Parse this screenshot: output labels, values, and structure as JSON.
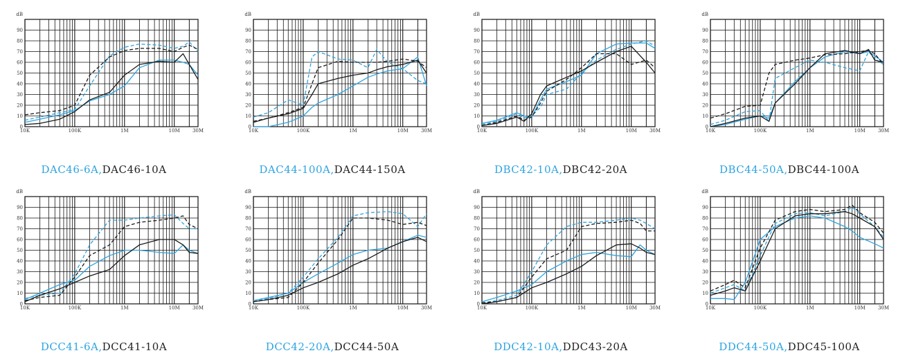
{
  "colors": {
    "blue": "#2ea4e0",
    "black": "#1a1a1a",
    "grid": "#111111"
  },
  "axis": {
    "y_unit": "dB",
    "y_ticks": [
      "0",
      "10",
      "20",
      "30",
      "40",
      "50",
      "60",
      "70",
      "80",
      "90"
    ],
    "x_ticks": [
      "10K",
      "100K",
      "1M",
      "10M",
      "30M"
    ],
    "x_scale": "log",
    "xlim_hz": [
      10000,
      30000000
    ],
    "ylim_db": [
      0,
      100
    ]
  },
  "chart_data": [
    {
      "type": "line",
      "caption_a": "DAC46-6A,",
      "caption_b": "DAC46-10A",
      "x": [
        "10K",
        "20K",
        "50K",
        "100K",
        "200K",
        "500K",
        "1M",
        "2M",
        "5M",
        "10M",
        "15M",
        "20M",
        "30M"
      ],
      "series": [
        {
          "name": "DAC46-6A",
          "color": "blue",
          "dash": "dashed",
          "values": [
            6,
            9,
            13,
            16,
            38,
            66,
            74,
            77,
            76,
            73,
            75,
            79,
            70
          ]
        },
        {
          "name": "DAC46-6A",
          "color": "blue",
          "dash": "solid",
          "values": [
            4,
            7,
            11,
            15,
            24,
            30,
            38,
            55,
            62,
            62,
            60,
            58,
            48
          ]
        },
        {
          "name": "DAC46-10A",
          "color": "black",
          "dash": "dashed",
          "values": [
            11,
            13,
            15,
            20,
            48,
            65,
            71,
            73,
            73,
            70,
            74,
            76,
            72
          ]
        },
        {
          "name": "DAC46-10A",
          "color": "black",
          "dash": "solid",
          "values": [
            2,
            3,
            7,
            14,
            25,
            32,
            48,
            58,
            61,
            60,
            68,
            58,
            44
          ]
        }
      ]
    },
    {
      "type": "line",
      "caption_a": "DAC44-100A,",
      "caption_b": "DAC44-150A",
      "x": [
        "10K",
        "20K",
        "50K",
        "100K",
        "150K",
        "200K",
        "500K",
        "1M",
        "2M",
        "3M",
        "5M",
        "10M",
        "20M",
        "30M"
      ],
      "series": [
        {
          "name": "DAC44-100A",
          "color": "blue",
          "dash": "dashed",
          "values": [
            9,
            13,
            25,
            20,
            65,
            70,
            63,
            62,
            55,
            72,
            60,
            54,
            43,
            40
          ]
        },
        {
          "name": "DAC44-100A",
          "color": "blue",
          "dash": "solid",
          "values": [
            0,
            0,
            4,
            10,
            18,
            22,
            30,
            38,
            46,
            49,
            52,
            54,
            65,
            38
          ]
        },
        {
          "name": "DAC44-150A",
          "color": "black",
          "dash": "dashed",
          "values": [
            5,
            8,
            13,
            18,
            40,
            55,
            61,
            60,
            60,
            60,
            61,
            63,
            61,
            55
          ]
        },
        {
          "name": "DAC44-150A",
          "color": "black",
          "dash": "solid",
          "values": [
            4,
            8,
            12,
            17,
            30,
            40,
            45,
            48,
            50,
            53,
            56,
            58,
            62,
            50
          ]
        }
      ]
    },
    {
      "type": "line",
      "caption_a": "DBC42-10A,",
      "caption_b": "DBC42-20A",
      "x": [
        "10K",
        "20K",
        "50K",
        "70K",
        "100K",
        "150K",
        "200K",
        "500K",
        "1M",
        "2M",
        "5M",
        "10M",
        "20M",
        "30M"
      ],
      "series": [
        {
          "name": "DBC42-10A",
          "color": "blue",
          "dash": "dashed",
          "values": [
            2,
            5,
            12,
            8,
            10,
            18,
            30,
            35,
            50,
            62,
            72,
            77,
            80,
            75
          ]
        },
        {
          "name": "DBC42-10A",
          "color": "blue",
          "dash": "solid",
          "values": [
            3,
            6,
            13,
            10,
            9,
            25,
            35,
            42,
            48,
            68,
            77,
            78,
            78,
            73
          ]
        },
        {
          "name": "DBC42-20A",
          "color": "black",
          "dash": "dashed",
          "values": [
            1,
            4,
            10,
            6,
            9,
            22,
            33,
            44,
            55,
            68,
            68,
            58,
            62,
            55
          ]
        },
        {
          "name": "DBC42-20A",
          "color": "black",
          "dash": "solid",
          "values": [
            1,
            3,
            9,
            5,
            12,
            30,
            38,
            46,
            52,
            60,
            70,
            75,
            60,
            50
          ]
        }
      ]
    },
    {
      "type": "line",
      "caption_a": "DBC44-50A,",
      "caption_b": "DBC44-100A",
      "x": [
        "10K",
        "20K",
        "50K",
        "100K",
        "150K",
        "200K",
        "500K",
        "1M",
        "2M",
        "5M",
        "10M",
        "15M",
        "20M",
        "30M"
      ],
      "series": [
        {
          "name": "DBC44-50A",
          "color": "blue",
          "dash": "dashed",
          "values": [
            2,
            6,
            14,
            15,
            5,
            45,
            55,
            62,
            60,
            55,
            52,
            70,
            63,
            58
          ]
        },
        {
          "name": "DBC44-50A",
          "color": "blue",
          "dash": "solid",
          "values": [
            0,
            2,
            7,
            10,
            8,
            22,
            42,
            55,
            65,
            70,
            68,
            70,
            66,
            60
          ]
        },
        {
          "name": "DBC44-100A",
          "color": "black",
          "dash": "dashed",
          "values": [
            8,
            12,
            19,
            20,
            50,
            58,
            62,
            64,
            67,
            68,
            70,
            71,
            68,
            58
          ]
        },
        {
          "name": "DBC44-100A",
          "color": "black",
          "dash": "solid",
          "values": [
            0,
            3,
            8,
            10,
            5,
            22,
            40,
            55,
            68,
            71,
            68,
            72,
            62,
            60
          ]
        }
      ]
    },
    {
      "type": "line",
      "caption_a": "DCC41-6A,",
      "caption_b": "DCC41-10A",
      "x": [
        "10K",
        "20K",
        "50K",
        "100K",
        "200K",
        "500K",
        "1M",
        "2M",
        "5M",
        "10M",
        "15M",
        "20M",
        "30M"
      ],
      "series": [
        {
          "name": "DCC41-6A",
          "color": "blue",
          "dash": "dashed",
          "values": [
            5,
            8,
            10,
            28,
            55,
            78,
            78,
            80,
            82,
            83,
            75,
            70,
            70
          ]
        },
        {
          "name": "DCC41-6A",
          "color": "blue",
          "dash": "solid",
          "values": [
            4,
            10,
            18,
            22,
            35,
            45,
            50,
            50,
            48,
            47,
            55,
            50,
            47
          ]
        },
        {
          "name": "DCC41-10A",
          "color": "black",
          "dash": "dashed",
          "values": [
            3,
            6,
            8,
            25,
            45,
            55,
            72,
            76,
            78,
            80,
            82,
            74,
            70
          ]
        },
        {
          "name": "DCC41-10A",
          "color": "black",
          "dash": "solid",
          "values": [
            2,
            8,
            14,
            20,
            26,
            32,
            45,
            55,
            60,
            60,
            55,
            48,
            47
          ]
        }
      ]
    },
    {
      "type": "line",
      "caption_a": "DCC42-20A,",
      "caption_b": "DCC44-50A",
      "x": [
        "10K",
        "20K",
        "50K",
        "100K",
        "200K",
        "500K",
        "1M",
        "2M",
        "5M",
        "10M",
        "20M",
        "30M"
      ],
      "series": [
        {
          "name": "DCC42-20A",
          "color": "blue",
          "dash": "dashed",
          "values": [
            3,
            5,
            10,
            25,
            42,
            62,
            82,
            85,
            86,
            84,
            72,
            84
          ]
        },
        {
          "name": "DCC42-20A",
          "color": "blue",
          "dash": "solid",
          "values": [
            3,
            6,
            10,
            20,
            28,
            38,
            46,
            50,
            52,
            58,
            64,
            62
          ]
        },
        {
          "name": "DCC44-50A",
          "color": "black",
          "dash": "dashed",
          "values": [
            2,
            4,
            6,
            20,
            38,
            60,
            80,
            80,
            78,
            74,
            76,
            73
          ]
        },
        {
          "name": "DCC44-50A",
          "color": "black",
          "dash": "solid",
          "values": [
            2,
            4,
            8,
            15,
            20,
            28,
            36,
            42,
            52,
            58,
            62,
            58
          ]
        }
      ]
    },
    {
      "type": "line",
      "caption_a": "DDC42-10A,",
      "caption_b": "DDC43-20A",
      "x": [
        "10K",
        "20K",
        "50K",
        "100K",
        "200K",
        "500K",
        "1M",
        "2M",
        "5M",
        "10M",
        "15M",
        "20M",
        "30M"
      ],
      "series": [
        {
          "name": "DDC42-10A",
          "color": "blue",
          "dash": "dashed",
          "values": [
            1,
            3,
            8,
            30,
            55,
            72,
            76,
            76,
            78,
            80,
            78,
            75,
            70
          ]
        },
        {
          "name": "DDC42-10A",
          "color": "blue",
          "dash": "solid",
          "values": [
            2,
            6,
            12,
            18,
            30,
            40,
            46,
            48,
            45,
            44,
            55,
            50,
            46
          ]
        },
        {
          "name": "DDC43-20A",
          "color": "black",
          "dash": "dashed",
          "values": [
            1,
            2,
            6,
            25,
            42,
            50,
            72,
            75,
            76,
            78,
            75,
            68,
            68
          ]
        },
        {
          "name": "DDC43-20A",
          "color": "black",
          "dash": "solid",
          "values": [
            0,
            2,
            6,
            15,
            20,
            28,
            35,
            45,
            55,
            56,
            52,
            48,
            46
          ]
        }
      ]
    },
    {
      "type": "line",
      "caption_a": "DDC44-50A,",
      "caption_b": "DDC45-100A",
      "x": [
        "10K",
        "20K",
        "30K",
        "50K",
        "100K",
        "200K",
        "500K",
        "1M",
        "2M",
        "5M",
        "7M",
        "10M",
        "20M",
        "30M"
      ],
      "series": [
        {
          "name": "DDC44-50A",
          "color": "blue",
          "dash": "dashed",
          "values": [
            10,
            15,
            18,
            12,
            45,
            75,
            84,
            85,
            82,
            86,
            90,
            84,
            72,
            62
          ]
        },
        {
          "name": "DDC44-50A",
          "color": "blue",
          "dash": "solid",
          "values": [
            5,
            5,
            4,
            20,
            60,
            72,
            80,
            82,
            80,
            72,
            68,
            62,
            56,
            52
          ]
        },
        {
          "name": "DDC45-100A",
          "color": "black",
          "dash": "dashed",
          "values": [
            12,
            18,
            22,
            15,
            52,
            78,
            86,
            88,
            86,
            88,
            92,
            85,
            76,
            66
          ]
        },
        {
          "name": "DDC45-100A",
          "color": "black",
          "dash": "solid",
          "values": [
            8,
            12,
            15,
            12,
            40,
            70,
            82,
            84,
            84,
            86,
            84,
            80,
            72,
            60
          ]
        }
      ]
    }
  ]
}
